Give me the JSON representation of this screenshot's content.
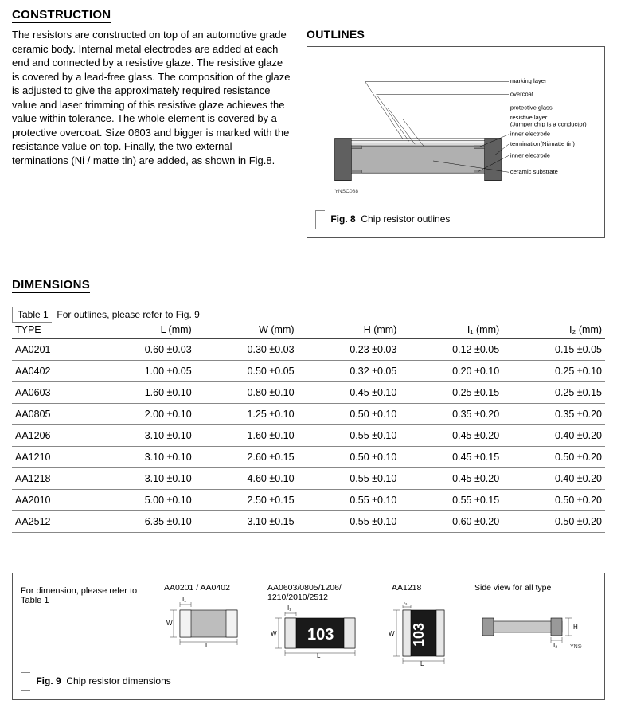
{
  "section_construction_title": "CONSTRUCTION",
  "construction_paragraph": "The resistors are constructed on top of an automotive grade ceramic body. Internal metal electrodes are added at each end and connected by a resistive glaze. The resistive glaze is covered by a lead-free glass. The composition of the glaze is adjusted to give the approximately required resistance value and laser trimming of this resistive glaze achieves the value within tolerance. The whole element is covered by a protective overcoat. Size 0603 and bigger is marked with the resistance value on top. Finally, the two external terminations (Ni / matte tin) are added, as shown in Fig.8.",
  "outlines_title": "OUTLINES",
  "outline_diagram": {
    "labels": [
      "marking layer",
      "overcoat",
      "protective glass",
      "resistive layer",
      "(Jumper chip is a conductor)",
      "inner electrode",
      "termination(Ni/matte tin)",
      "inner electrode",
      "ceramic substrate"
    ],
    "id_text": "YNSC088",
    "colors": {
      "body": "#b0b0b0",
      "dark": "#606060",
      "line": "#000000"
    }
  },
  "fig8_label": "Fig. 8",
  "fig8_caption": "Chip resistor outlines",
  "section_dimensions_title": "DIMENSIONS",
  "table1_label": "Table 1",
  "table1_caption": "For outlines, please refer to Fig. 9",
  "dim_table": {
    "columns": [
      "TYPE",
      "L (mm)",
      "W (mm)",
      "H (mm)",
      "I₁ (mm)",
      "I₂ (mm)"
    ],
    "rows": [
      [
        "AA0201",
        "0.60 ±0.03",
        "0.30 ±0.03",
        "0.23 ±0.03",
        "0.12 ±0.05",
        "0.15 ±0.05"
      ],
      [
        "AA0402",
        "1.00 ±0.05",
        "0.50 ±0.05",
        "0.32 ±0.05",
        "0.20 ±0.10",
        "0.25 ±0.10"
      ],
      [
        "AA0603",
        "1.60 ±0.10",
        "0.80 ±0.10",
        "0.45 ±0.10",
        "0.25 ±0.15",
        "0.25 ±0.15"
      ],
      [
        "AA0805",
        "2.00 ±0.10",
        "1.25 ±0.10",
        "0.50 ±0.10",
        "0.35 ±0.20",
        "0.35 ±0.20"
      ],
      [
        "AA1206",
        "3.10 ±0.10",
        "1.60 ±0.10",
        "0.55 ±0.10",
        "0.45 ±0.20",
        "0.40 ±0.20"
      ],
      [
        "AA1210",
        "3.10 ±0.10",
        "2.60 ±0.15",
        "0.50 ±0.10",
        "0.45 ±0.15",
        "0.50 ±0.20"
      ],
      [
        "AA1218",
        "3.10 ±0.10",
        "4.60 ±0.10",
        "0.55 ±0.10",
        "0.45 ±0.20",
        "0.40 ±0.20"
      ],
      [
        "AA2010",
        "5.00 ±0.10",
        "2.50 ±0.15",
        "0.55 ±0.10",
        "0.55 ±0.15",
        "0.50 ±0.20"
      ],
      [
        "AA2512",
        "6.35 ±0.10",
        "3.10 ±0.15",
        "0.55 ±0.10",
        "0.60 ±0.20",
        "0.50 ±0.20"
      ]
    ]
  },
  "fig9_ref_text": "For dimension, please refer to Table 1",
  "fig9_groups": {
    "g1": "AA0201 / AA0402",
    "g2": "AA0603/0805/1206/\n1210/2010/2512",
    "g3": "AA1218",
    "g4": "Side view for all type"
  },
  "fig9_label": "Fig. 9",
  "fig9_caption": "Chip resistor dimensions",
  "dim_labels": {
    "L": "L",
    "W": "W",
    "H": "H",
    "I1": "I₁",
    "I2": "I₂"
  },
  "chip_marking": "103",
  "fig9_id": "YNSC094"
}
